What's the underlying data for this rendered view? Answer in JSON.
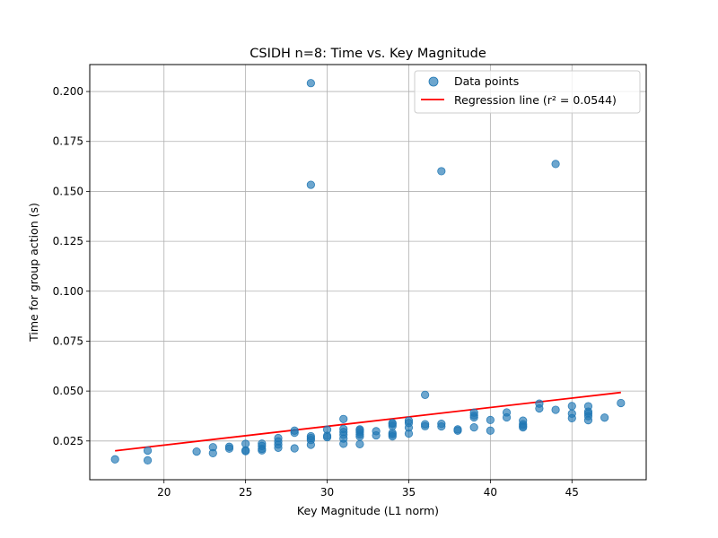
{
  "chart_data": {
    "type": "scatter",
    "title": "CSIDH n=8: Time vs. Key Magnitude",
    "xlabel": "Key Magnitude (L1 norm)",
    "ylabel": "Time for group action (s)",
    "xlim": [
      15.45,
      49.55
    ],
    "ylim": [
      0.0056,
      0.2135
    ],
    "xticks": [
      20,
      25,
      30,
      35,
      40,
      45
    ],
    "xtick_labels": [
      "20",
      "25",
      "30",
      "35",
      "40",
      "45"
    ],
    "yticks": [
      0.025,
      0.05,
      0.075,
      0.1,
      0.125,
      0.15,
      0.175,
      0.2
    ],
    "ytick_labels": [
      "0.025",
      "0.050",
      "0.075",
      "0.100",
      "0.125",
      "0.150",
      "0.175",
      "0.200"
    ],
    "grid": true,
    "legend_position": "top-right",
    "series": [
      {
        "name": "Data points",
        "kind": "scatter",
        "color": "#1f77b4",
        "points": [
          [
            17,
            0.0158
          ],
          [
            19,
            0.0153
          ],
          [
            19,
            0.0202
          ],
          [
            22,
            0.0197
          ],
          [
            23,
            0.0189
          ],
          [
            23,
            0.0219
          ],
          [
            24,
            0.0212
          ],
          [
            24,
            0.0221
          ],
          [
            25,
            0.0199
          ],
          [
            25,
            0.0203
          ],
          [
            25,
            0.0236
          ],
          [
            26,
            0.0203
          ],
          [
            26,
            0.0211
          ],
          [
            26,
            0.0225
          ],
          [
            26,
            0.0237
          ],
          [
            27,
            0.0216
          ],
          [
            27,
            0.0232
          ],
          [
            27,
            0.0248
          ],
          [
            27,
            0.0265
          ],
          [
            28,
            0.0213
          ],
          [
            28,
            0.0291
          ],
          [
            28,
            0.0302
          ],
          [
            29,
            0.0231
          ],
          [
            29,
            0.0255
          ],
          [
            29,
            0.0265
          ],
          [
            29,
            0.0274
          ],
          [
            29,
            0.1533
          ],
          [
            29,
            0.2042
          ],
          [
            30,
            0.0269
          ],
          [
            30,
            0.0276
          ],
          [
            30,
            0.0307
          ],
          [
            31,
            0.0236
          ],
          [
            31,
            0.0262
          ],
          [
            31,
            0.0281
          ],
          [
            31,
            0.0295
          ],
          [
            31,
            0.031
          ],
          [
            31,
            0.036
          ],
          [
            32,
            0.0234
          ],
          [
            32,
            0.0272
          ],
          [
            32,
            0.0283
          ],
          [
            32,
            0.0294
          ],
          [
            32,
            0.0303
          ],
          [
            32,
            0.0308
          ],
          [
            33,
            0.0278
          ],
          [
            33,
            0.0299
          ],
          [
            34,
            0.0273
          ],
          [
            34,
            0.0282
          ],
          [
            34,
            0.029
          ],
          [
            34,
            0.0325
          ],
          [
            34,
            0.0335
          ],
          [
            34,
            0.034
          ],
          [
            35,
            0.0287
          ],
          [
            35,
            0.0317
          ],
          [
            35,
            0.034
          ],
          [
            35,
            0.0352
          ],
          [
            36,
            0.0324
          ],
          [
            36,
            0.0334
          ],
          [
            36,
            0.0481
          ],
          [
            37,
            0.0323
          ],
          [
            37,
            0.0336
          ],
          [
            37,
            0.1601
          ],
          [
            38,
            0.0302
          ],
          [
            38,
            0.0308
          ],
          [
            39,
            0.0318
          ],
          [
            39,
            0.0368
          ],
          [
            39,
            0.0378
          ],
          [
            39,
            0.0392
          ],
          [
            40,
            0.0302
          ],
          [
            40,
            0.0355
          ],
          [
            41,
            0.0368
          ],
          [
            41,
            0.0393
          ],
          [
            42,
            0.0318
          ],
          [
            42,
            0.0325
          ],
          [
            42,
            0.0334
          ],
          [
            42,
            0.0352
          ],
          [
            43,
            0.0413
          ],
          [
            43,
            0.0437
          ],
          [
            44,
            0.0406
          ],
          [
            44,
            0.1637
          ],
          [
            45,
            0.0364
          ],
          [
            45,
            0.0387
          ],
          [
            45,
            0.0425
          ],
          [
            46,
            0.0354
          ],
          [
            46,
            0.0374
          ],
          [
            46,
            0.0388
          ],
          [
            46,
            0.0397
          ],
          [
            46,
            0.0424
          ],
          [
            47,
            0.0367
          ],
          [
            48,
            0.044
          ]
        ]
      },
      {
        "name": "Regression line (r² = 0.0544)",
        "kind": "line",
        "color": "#ff0000",
        "x": [
          17,
          48
        ],
        "y": [
          0.0201,
          0.0493
        ]
      }
    ]
  }
}
